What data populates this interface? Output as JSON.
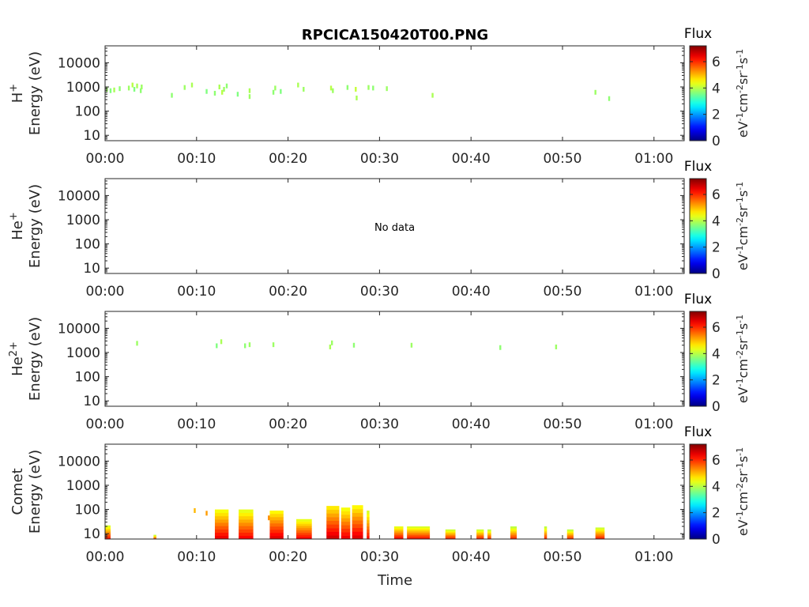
{
  "chart_data": {
    "type": "heatmap",
    "title": "RPCICA150420T00.PNG",
    "xlabel": "Time",
    "x_ticks": [
      "00:00",
      "00:10",
      "00:20",
      "00:30",
      "00:40",
      "00:50",
      "01:00"
    ],
    "x_range_minutes": [
      0,
      63.3
    ],
    "y_scale": "log",
    "y_range_eV": [
      6,
      50000
    ],
    "y_ticks": [
      "10",
      "100",
      "1000",
      "10000"
    ],
    "colorbar": {
      "label": "Flux",
      "unit_label": "eV-1cm-2sr-1s-1",
      "range": [
        0,
        7.2
      ],
      "ticks": [
        "0",
        "2",
        "4",
        "6"
      ],
      "colormap": "jet"
    },
    "panels": [
      {
        "species_label": "H",
        "species_sup": "+",
        "ylabel": "Energy (eV)",
        "note": "",
        "cells": [
          {
            "t": 0.2,
            "e": 800,
            "v": 3.8
          },
          {
            "t": 0.6,
            "e": 700,
            "v": 3.6
          },
          {
            "t": 1.0,
            "e": 750,
            "v": 3.9
          },
          {
            "t": 1.6,
            "e": 850,
            "v": 3.7
          },
          {
            "t": 2.6,
            "e": 900,
            "v": 3.8
          },
          {
            "t": 3.0,
            "e": 1200,
            "v": 4.0
          },
          {
            "t": 3.2,
            "e": 800,
            "v": 3.6
          },
          {
            "t": 3.5,
            "e": 1100,
            "v": 3.9
          },
          {
            "t": 3.9,
            "e": 700,
            "v": 3.7
          },
          {
            "t": 4.0,
            "e": 1000,
            "v": 3.8
          },
          {
            "t": 7.3,
            "e": 450,
            "v": 3.7
          },
          {
            "t": 8.7,
            "e": 950,
            "v": 3.8
          },
          {
            "t": 9.5,
            "e": 1200,
            "v": 3.9
          },
          {
            "t": 11.1,
            "e": 650,
            "v": 3.6
          },
          {
            "t": 12.0,
            "e": 550,
            "v": 3.7
          },
          {
            "t": 12.5,
            "e": 1000,
            "v": 3.9
          },
          {
            "t": 12.8,
            "e": 600,
            "v": 4.0
          },
          {
            "t": 13.0,
            "e": 800,
            "v": 3.8
          },
          {
            "t": 13.3,
            "e": 1100,
            "v": 3.7
          },
          {
            "t": 14.5,
            "e": 500,
            "v": 3.6
          },
          {
            "t": 15.8,
            "e": 700,
            "v": 3.9
          },
          {
            "t": 15.8,
            "e": 400,
            "v": 3.8
          },
          {
            "t": 18.4,
            "e": 600,
            "v": 3.7
          },
          {
            "t": 18.6,
            "e": 900,
            "v": 3.8
          },
          {
            "t": 19.2,
            "e": 650,
            "v": 3.6
          },
          {
            "t": 21.1,
            "e": 1200,
            "v": 3.9
          },
          {
            "t": 21.7,
            "e": 800,
            "v": 3.8
          },
          {
            "t": 24.7,
            "e": 900,
            "v": 4.0
          },
          {
            "t": 24.9,
            "e": 700,
            "v": 3.8
          },
          {
            "t": 26.5,
            "e": 950,
            "v": 3.7
          },
          {
            "t": 27.4,
            "e": 800,
            "v": 4.1
          },
          {
            "t": 27.5,
            "e": 350,
            "v": 3.9
          },
          {
            "t": 28.8,
            "e": 950,
            "v": 3.8
          },
          {
            "t": 29.3,
            "e": 900,
            "v": 3.7
          },
          {
            "t": 30.8,
            "e": 850,
            "v": 3.8
          },
          {
            "t": 35.8,
            "e": 450,
            "v": 3.9
          },
          {
            "t": 53.6,
            "e": 600,
            "v": 3.8
          },
          {
            "t": 55.1,
            "e": 330,
            "v": 3.7
          }
        ]
      },
      {
        "species_label": "He",
        "species_sup": "+",
        "ylabel": "Energy (eV)",
        "note": "No data",
        "cells": []
      },
      {
        "species_label": "He",
        "species_sup": "2+",
        "ylabel": "Energy (eV)",
        "note": "",
        "cells": [
          {
            "t": 3.5,
            "e": 2400,
            "v": 3.8
          },
          {
            "t": 12.2,
            "e": 1900,
            "v": 3.6
          },
          {
            "t": 12.7,
            "e": 2800,
            "v": 3.9
          },
          {
            "t": 15.3,
            "e": 1900,
            "v": 3.7
          },
          {
            "t": 15.8,
            "e": 2100,
            "v": 3.8
          },
          {
            "t": 18.4,
            "e": 2100,
            "v": 3.8
          },
          {
            "t": 24.6,
            "e": 1700,
            "v": 3.9
          },
          {
            "t": 24.8,
            "e": 2500,
            "v": 3.8
          },
          {
            "t": 27.2,
            "e": 2000,
            "v": 3.7
          },
          {
            "t": 33.5,
            "e": 2000,
            "v": 3.8
          },
          {
            "t": 43.2,
            "e": 1600,
            "v": 3.7
          },
          {
            "t": 49.3,
            "e": 1700,
            "v": 3.8
          }
        ]
      },
      {
        "species_label": "Comet",
        "species_sup": "",
        "ylabel": "Energy (eV)",
        "note": "",
        "bursts": [
          {
            "t0": 0.0,
            "t1": 0.6,
            "top": 22,
            "v": 6.2
          },
          {
            "t0": 5.3,
            "t1": 5.6,
            "top": 9,
            "v": 6.0
          },
          {
            "t0": 12.0,
            "t1": 13.5,
            "top": 100,
            "v": 6.4
          },
          {
            "t0": 14.6,
            "t1": 16.2,
            "top": 100,
            "v": 6.3
          },
          {
            "t0": 18.0,
            "t1": 19.5,
            "top": 90,
            "v": 6.5
          },
          {
            "t0": 20.9,
            "t1": 22.6,
            "top": 40,
            "v": 6.3
          },
          {
            "t0": 24.2,
            "t1": 25.6,
            "top": 140,
            "v": 6.6
          },
          {
            "t0": 25.8,
            "t1": 26.8,
            "top": 120,
            "v": 6.4
          },
          {
            "t0": 27.0,
            "t1": 28.2,
            "top": 150,
            "v": 6.5
          },
          {
            "t0": 28.6,
            "t1": 28.9,
            "top": 90,
            "v": 6.2
          },
          {
            "t0": 31.6,
            "t1": 32.6,
            "top": 20,
            "v": 6.3
          },
          {
            "t0": 33.0,
            "t1": 35.5,
            "top": 20,
            "v": 6.2
          },
          {
            "t0": 37.2,
            "t1": 38.3,
            "top": 15,
            "v": 6.1
          },
          {
            "t0": 40.6,
            "t1": 41.4,
            "top": 15,
            "v": 6.1
          },
          {
            "t0": 41.8,
            "t1": 42.2,
            "top": 15,
            "v": 6.0
          },
          {
            "t0": 44.3,
            "t1": 45.0,
            "top": 20,
            "v": 6.0
          },
          {
            "t0": 48.0,
            "t1": 48.3,
            "top": 20,
            "v": 6.0
          },
          {
            "t0": 50.5,
            "t1": 51.2,
            "top": 15,
            "v": 6.0
          },
          {
            "t0": 53.6,
            "t1": 54.6,
            "top": 18,
            "v": 6.1
          }
        ],
        "cells": [
          {
            "t": 9.8,
            "e": 90,
            "v": 5.0
          },
          {
            "t": 11.1,
            "e": 70,
            "v": 5.2
          },
          {
            "t": 17.9,
            "e": 45,
            "v": 5.3
          }
        ]
      }
    ]
  }
}
